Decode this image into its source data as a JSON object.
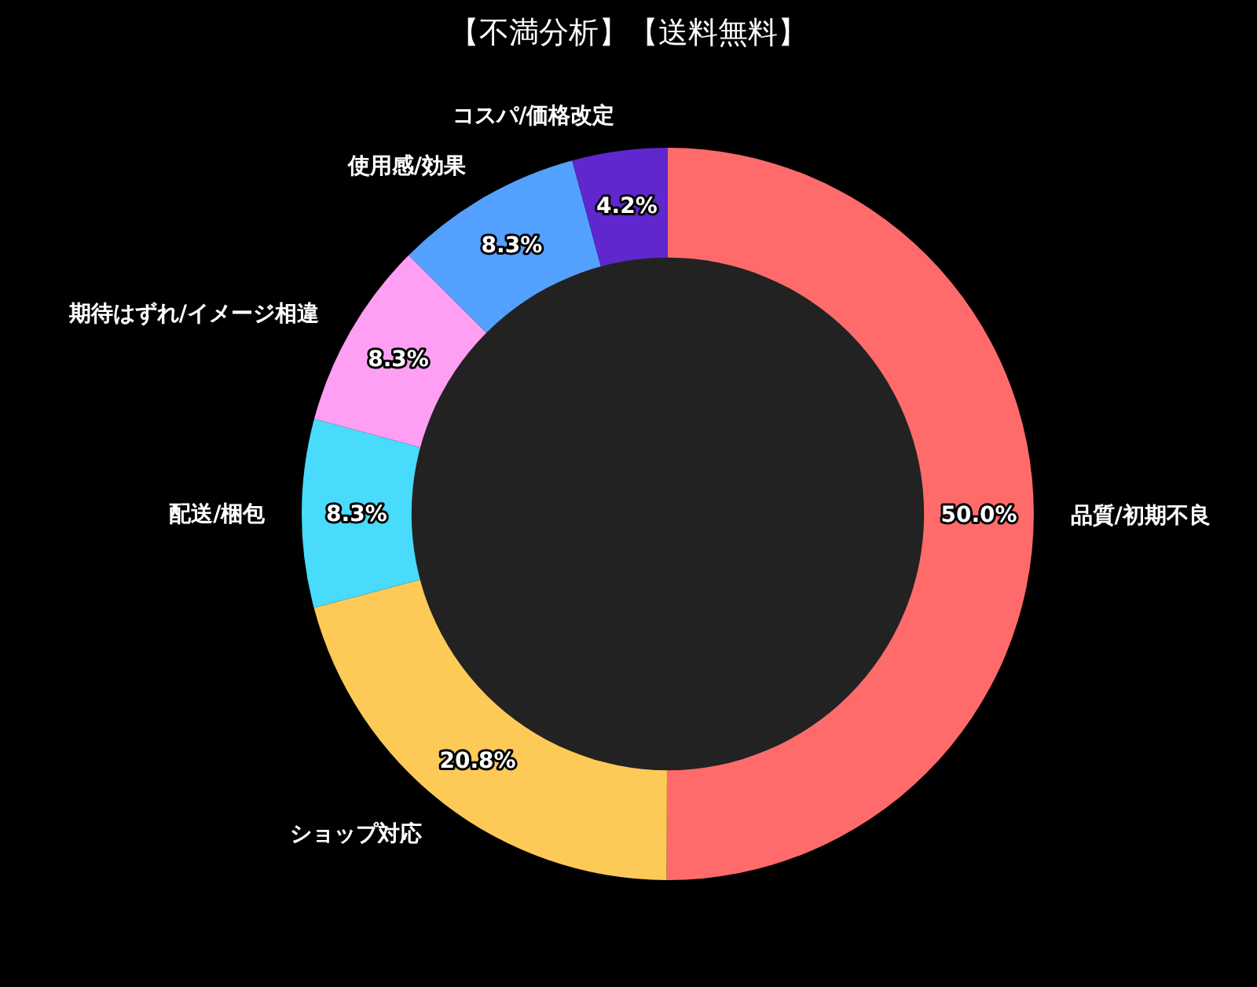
{
  "chart_data": {
    "type": "donut",
    "title": "【不満分析】【送料無料】",
    "categories": [
      "品質/初期不良",
      "ショップ対応",
      "配送/梱包",
      "期待はずれ/イメージ相違",
      "使用感/効果",
      "コスパ/価格改定"
    ],
    "values": [
      50.0,
      20.8,
      8.3,
      8.3,
      8.3,
      4.2
    ],
    "value_labels": [
      "50.0%",
      "20.8%",
      "8.3%",
      "8.3%",
      "8.3%",
      "4.2%"
    ],
    "colors": [
      "#ff6b6b",
      "#feca57",
      "#48dbfb",
      "#ff9ff3",
      "#54a0ff",
      "#5f27cd"
    ],
    "legend": false
  }
}
